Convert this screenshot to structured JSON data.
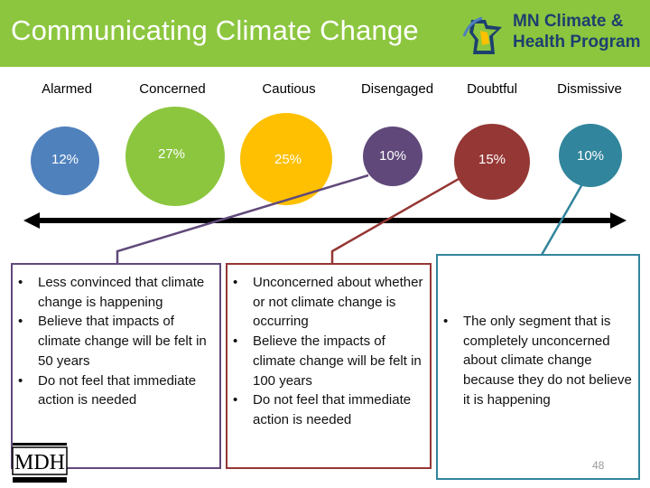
{
  "header": {
    "title": "Communicating Climate Change",
    "logo_line1": "MN Climate &",
    "logo_line2": "Health Program"
  },
  "segments": [
    {
      "label": "Alarmed",
      "percent": "12%",
      "color": "#4f81bd"
    },
    {
      "label": "Concerned",
      "percent": "27%",
      "color": "#8cc63f"
    },
    {
      "label": "Cautious",
      "percent": "25%",
      "color": "#fec000"
    },
    {
      "label": "Disengaged",
      "percent": "10%",
      "color": "#60497a"
    },
    {
      "label": "Doubtful",
      "percent": "15%",
      "color": "#953735"
    },
    {
      "label": "Dismissive",
      "percent": "10%",
      "color": "#31859c"
    }
  ],
  "boxes": [
    {
      "border_color": "#60497a",
      "bullets": [
        "Less convinced that climate change is happening",
        "Believe that impacts of climate change will be felt in 50 years",
        "Do not feel that immediate action is needed"
      ]
    },
    {
      "border_color": "#953735",
      "bullets": [
        "Unconcerned about whether or not climate change is occurring",
        "Believe the impacts of climate change will be felt in 100 years",
        "Do not feel that immediate action is needed"
      ]
    },
    {
      "border_color": "#31859c",
      "bullets": [
        "The only segment that is completely unconcerned about climate change because they do not believe it is happening"
      ]
    }
  ],
  "footer": {
    "mdh_logo_text": "MDH",
    "page_number": "48"
  }
}
